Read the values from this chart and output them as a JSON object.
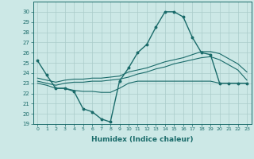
{
  "xlabel": "Humidex (Indice chaleur)",
  "background_color": "#cce8e6",
  "grid_color": "#aaccca",
  "line_color": "#1a6b6a",
  "x_values": [
    0,
    1,
    2,
    3,
    4,
    5,
    6,
    7,
    8,
    9,
    10,
    11,
    12,
    13,
    14,
    15,
    16,
    17,
    18,
    19,
    20,
    21,
    22,
    23
  ],
  "line1": [
    25.2,
    23.8,
    22.5,
    22.5,
    22.2,
    20.5,
    20.2,
    19.5,
    19.2,
    23.2,
    24.5,
    26.0,
    26.8,
    28.5,
    30.0,
    30.0,
    29.5,
    27.5,
    26.0,
    25.8,
    23.0,
    23.0,
    23.0,
    23.0
  ],
  "line2": [
    23.0,
    22.8,
    22.5,
    22.5,
    22.3,
    22.2,
    22.2,
    22.1,
    22.1,
    22.5,
    23.0,
    23.2,
    23.2,
    23.2,
    23.2,
    23.2,
    23.2,
    23.2,
    23.2,
    23.2,
    23.0,
    23.0,
    23.0,
    23.0
  ],
  "line3": [
    23.2,
    23.0,
    22.8,
    23.0,
    23.1,
    23.1,
    23.2,
    23.2,
    23.3,
    23.4,
    23.6,
    23.9,
    24.1,
    24.4,
    24.6,
    24.9,
    25.1,
    25.3,
    25.5,
    25.6,
    25.3,
    24.8,
    24.3,
    23.3
  ],
  "line4": [
    23.5,
    23.3,
    23.1,
    23.3,
    23.4,
    23.4,
    23.5,
    23.5,
    23.6,
    23.7,
    24.1,
    24.3,
    24.5,
    24.8,
    25.1,
    25.3,
    25.5,
    25.8,
    26.1,
    26.1,
    25.9,
    25.4,
    24.9,
    24.1
  ],
  "ylim": [
    19,
    31
  ],
  "yticks": [
    19,
    20,
    21,
    22,
    23,
    24,
    25,
    26,
    27,
    28,
    29,
    30
  ],
  "xlim": [
    -0.5,
    23.5
  ]
}
